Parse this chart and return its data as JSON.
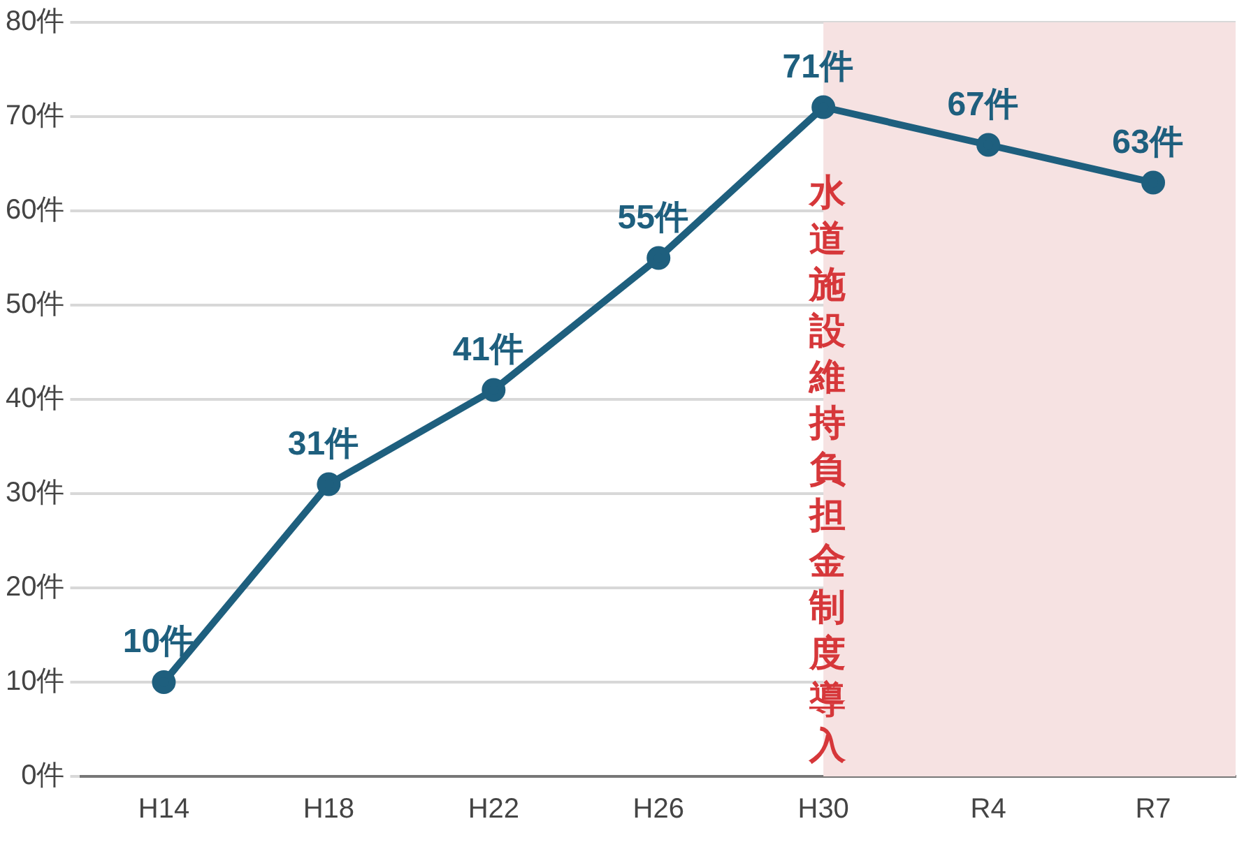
{
  "chart_data": {
    "type": "line",
    "categories": [
      "H14",
      "H18",
      "H22",
      "H26",
      "H30",
      "R4",
      "R7"
    ],
    "series": [
      {
        "color": "#1e5f7e",
        "values": [
          10,
          31,
          41,
          55,
          71,
          67,
          63
        ],
        "value_labels": [
          "10件",
          "31件",
          "41件",
          "55件",
          "71件",
          "67件",
          "63件"
        ]
      }
    ],
    "ylim": [
      0,
      80
    ],
    "yticks": [
      {
        "value": 0,
        "label": "0件"
      },
      {
        "value": 10,
        "label": "10件"
      },
      {
        "value": 20,
        "label": "20件"
      },
      {
        "value": 30,
        "label": "30件"
      },
      {
        "value": 40,
        "label": "40件"
      },
      {
        "value": 50,
        "label": "50件"
      },
      {
        "value": 60,
        "label": "60件"
      },
      {
        "value": 70,
        "label": "70件"
      },
      {
        "value": 80,
        "label": "80件"
      }
    ],
    "grid": "y",
    "legend": false,
    "marker": "circle",
    "line_style": "solid",
    "bands": [
      {
        "axis": "x",
        "from": "H30",
        "to": "R7",
        "label": "水道施設維持負担金制度導入",
        "color": "#f6e2e2"
      }
    ]
  }
}
